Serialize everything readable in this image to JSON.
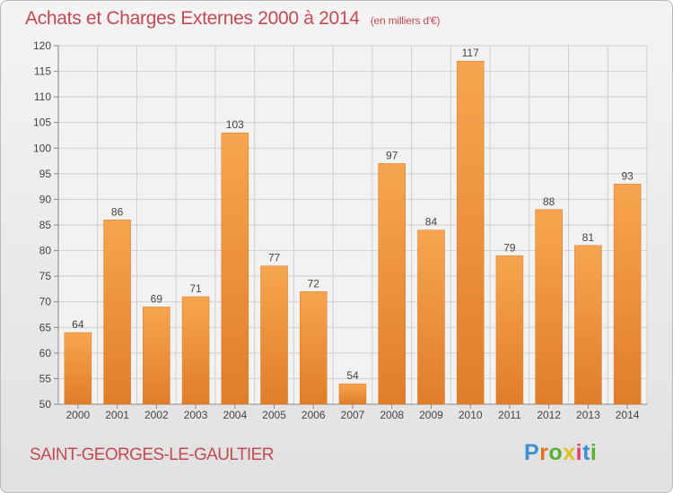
{
  "header": {
    "title": "Achats et Charges Externes 2000 à 2014",
    "unit": "(en milliers d'€)"
  },
  "footer": {
    "town": "SAINT-GEORGES-LE-GAULTIER",
    "logo_letters": [
      "P",
      "r",
      "o",
      "x",
      "i",
      "t",
      "i"
    ],
    "logo_colors": [
      "#3a8fd6",
      "#e07020",
      "#58b030",
      "#e0c020",
      "#e04070",
      "#3a8fd6",
      "#58b030"
    ]
  },
  "colors": {
    "bar_light": "#f7a550",
    "bar_dark": "#e07d2a",
    "grid": "#cfcfcf",
    "axis_text": "#444444"
  },
  "chart_data": {
    "type": "bar",
    "categories": [
      "2000",
      "2001",
      "2002",
      "2003",
      "2004",
      "2005",
      "2006",
      "2007",
      "2008",
      "2009",
      "2010",
      "2011",
      "2012",
      "2013",
      "2014"
    ],
    "values": [
      64,
      86,
      69,
      71,
      103,
      77,
      72,
      54,
      97,
      84,
      117,
      79,
      88,
      81,
      93
    ],
    "yticks": [
      50,
      55,
      60,
      65,
      70,
      75,
      80,
      85,
      90,
      95,
      100,
      105,
      110,
      115,
      120
    ],
    "ylim": [
      50,
      120
    ],
    "grid": true,
    "data_labels": true
  }
}
